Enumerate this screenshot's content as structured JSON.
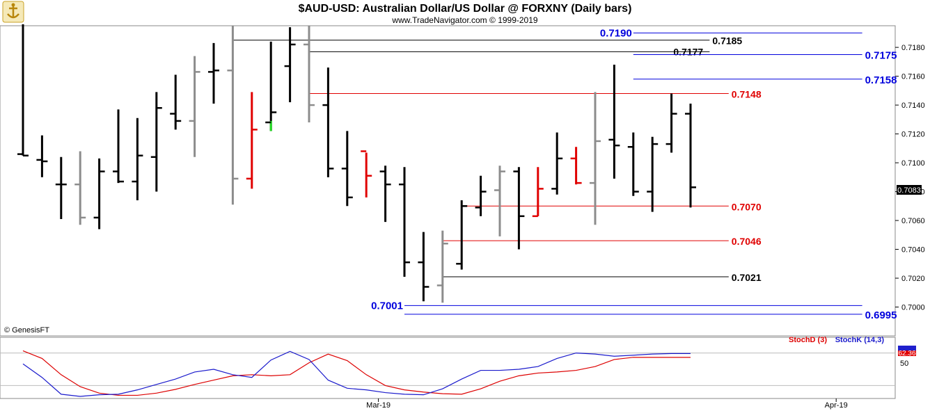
{
  "header": {
    "title": "$AUD-USD:  Australian Dollar/US Dollar @ FORXNY  (Daily bars)",
    "subtitle": "www.TradeNavigator.com © 1999-2019"
  },
  "copyright": "© GenesisFT",
  "colors": {
    "black": "#000000",
    "gray": "#8c8c8c",
    "red": "#e00000",
    "green": "#22dd22",
    "blue": "#0000dd",
    "stochK": "#1a1acc",
    "stochD": "#dd0000"
  },
  "chart_data": [
    {
      "type": "ohlc",
      "ylim": [
        0.698,
        0.7195
      ],
      "y_ticks": [
        "0.7180",
        "0.7160",
        "0.7140",
        "0.7120",
        "0.7100",
        "0.7080",
        "0.7060",
        "0.7040",
        "0.7020",
        "0.7000"
      ],
      "x_labels": [
        {
          "label": "Mar-19",
          "index": 19
        },
        {
          "label": "Apr-19",
          "index": 43
        }
      ],
      "last_price": "0.7083",
      "bars": [
        {
          "h": 0.7196,
          "l": 0.7105,
          "o": 0.7106,
          "c": 0.7105,
          "color": "black"
        },
        {
          "h": 0.7119,
          "l": 0.709,
          "o": 0.7102,
          "c": 0.7101,
          "color": "black"
        },
        {
          "h": 0.7104,
          "l": 0.7061,
          "o": 0.7085,
          "c": 0.7085,
          "color": "black"
        },
        {
          "h": 0.7108,
          "l": 0.7057,
          "o": 0.7085,
          "c": 0.7062,
          "color": "gray"
        },
        {
          "h": 0.7103,
          "l": 0.7054,
          "o": 0.7062,
          "c": 0.7094,
          "color": "black"
        },
        {
          "h": 0.7137,
          "l": 0.7086,
          "o": 0.7094,
          "c": 0.7087,
          "color": "black"
        },
        {
          "h": 0.7131,
          "l": 0.7074,
          "o": 0.7087,
          "c": 0.7105,
          "color": "black"
        },
        {
          "h": 0.7149,
          "l": 0.708,
          "o": 0.7104,
          "c": 0.7138,
          "color": "black"
        },
        {
          "h": 0.7161,
          "l": 0.7123,
          "o": 0.7134,
          "c": 0.7129,
          "color": "black"
        },
        {
          "h": 0.7174,
          "l": 0.7104,
          "o": 0.7129,
          "c": 0.7163,
          "color": "gray"
        },
        {
          "h": 0.7183,
          "l": 0.7141,
          "o": 0.7163,
          "c": 0.7164,
          "color": "black"
        },
        {
          "h": 0.7195,
          "l": 0.7071,
          "o": 0.7164,
          "c": 0.7089,
          "color": "gray"
        },
        {
          "h": 0.7149,
          "l": 0.7082,
          "o": 0.7089,
          "c": 0.7123,
          "color": "red"
        },
        {
          "h": 0.7184,
          "l": 0.7122,
          "o": 0.7128,
          "c": 0.7135,
          "color": "black",
          "low_seg_color": "green",
          "low_seg_top": 0.7129
        },
        {
          "h": 0.7194,
          "l": 0.7142,
          "o": 0.7167,
          "c": 0.7182,
          "color": "black"
        },
        {
          "h": 0.7195,
          "l": 0.7128,
          "o": 0.7182,
          "c": 0.714,
          "color": "gray"
        },
        {
          "h": 0.7166,
          "l": 0.709,
          "o": 0.714,
          "c": 0.7096,
          "color": "black"
        },
        {
          "h": 0.7122,
          "l": 0.707,
          "o": 0.7096,
          "c": 0.7076,
          "color": "black"
        },
        {
          "h": 0.7107,
          "l": 0.7076,
          "o": 0.7108,
          "c": 0.7091,
          "color": "red"
        },
        {
          "h": 0.7098,
          "l": 0.7059,
          "o": 0.7094,
          "c": 0.7085,
          "color": "black"
        },
        {
          "h": 0.7097,
          "l": 0.7021,
          "o": 0.7085,
          "c": 0.7031,
          "color": "black"
        },
        {
          "h": 0.7052,
          "l": 0.7004,
          "o": 0.7031,
          "c": 0.7014,
          "color": "black"
        },
        {
          "h": 0.7053,
          "l": 0.7003,
          "o": 0.7015,
          "c": 0.7044,
          "color": "gray"
        },
        {
          "h": 0.7074,
          "l": 0.7026,
          "o": 0.703,
          "c": 0.707,
          "color": "black"
        },
        {
          "h": 0.7091,
          "l": 0.7063,
          "o": 0.7069,
          "c": 0.708,
          "color": "black"
        },
        {
          "h": 0.7098,
          "l": 0.7049,
          "o": 0.7081,
          "c": 0.7094,
          "color": "gray"
        },
        {
          "h": 0.7097,
          "l": 0.704,
          "o": 0.7094,
          "c": 0.7063,
          "color": "black"
        },
        {
          "h": 0.7097,
          "l": 0.7063,
          "o": 0.7063,
          "c": 0.7082,
          "color": "red"
        },
        {
          "h": 0.7121,
          "l": 0.7078,
          "o": 0.7082,
          "c": 0.7103,
          "color": "black"
        },
        {
          "h": 0.7111,
          "l": 0.7085,
          "o": 0.7103,
          "c": 0.7086,
          "color": "red"
        },
        {
          "h": 0.7149,
          "l": 0.7057,
          "o": 0.7086,
          "c": 0.7115,
          "color": "gray"
        },
        {
          "h": 0.7168,
          "l": 0.7089,
          "o": 0.7116,
          "c": 0.7112,
          "color": "black"
        },
        {
          "h": 0.7121,
          "l": 0.7077,
          "o": 0.7111,
          "c": 0.708,
          "color": "black"
        },
        {
          "h": 0.7118,
          "l": 0.7066,
          "o": 0.708,
          "c": 0.7113,
          "color": "black"
        },
        {
          "h": 0.7148,
          "l": 0.7107,
          "o": 0.7113,
          "c": 0.7134,
          "color": "black"
        },
        {
          "h": 0.7141,
          "l": 0.7069,
          "o": 0.7134,
          "c": 0.7083,
          "color": "black"
        }
      ],
      "levels": [
        {
          "label": "0.7190",
          "value": 0.719,
          "color": "blue",
          "x_start": 32,
          "x_end": 44,
          "label_pos": "left"
        },
        {
          "label": "0.7185",
          "value": 0.7185,
          "color": "black",
          "x_start": 11,
          "x_end": 36,
          "label_pos": "right"
        },
        {
          "label": "0.7177",
          "value": 0.7177,
          "color": "black",
          "x_start": 15,
          "x_end": 36,
          "label_pos": "right-inner"
        },
        {
          "label": "0.7175",
          "value": 0.7175,
          "color": "blue",
          "x_start": 32,
          "x_end": 44,
          "label_pos": "right"
        },
        {
          "label": "0.7158",
          "value": 0.7158,
          "color": "blue",
          "x_start": 32,
          "x_end": 44,
          "label_pos": "right"
        },
        {
          "label": "0.7148",
          "value": 0.7148,
          "color": "red",
          "x_start": 15,
          "x_end": 37,
          "label_pos": "right"
        },
        {
          "label": "0.7070",
          "value": 0.707,
          "color": "red",
          "x_start": 23,
          "x_end": 37,
          "label_pos": "right"
        },
        {
          "label": "0.7046",
          "value": 0.7046,
          "color": "red",
          "x_start": 22,
          "x_end": 37,
          "label_pos": "right"
        },
        {
          "label": "0.7021",
          "value": 0.7021,
          "color": "black",
          "x_start": 22,
          "x_end": 37,
          "label_pos": "right"
        },
        {
          "label": "0.7001",
          "value": 0.7001,
          "color": "blue",
          "x_start": 20,
          "x_end": 44,
          "label_pos": "left"
        },
        {
          "label": "0.6995",
          "value": 0.6995,
          "color": "blue",
          "x_start": 20,
          "x_end": 44,
          "label_pos": "right"
        }
      ]
    },
    {
      "type": "line",
      "ylim": [
        0,
        100
      ],
      "y_ticks": [
        "50"
      ],
      "reference_lines": [
        80,
        20
      ],
      "last_value": "62.36",
      "series": [
        {
          "name": "StochD (3)",
          "color": "stochD",
          "values": [
            84,
            70,
            40,
            18,
            6,
            2,
            2,
            6,
            13,
            22,
            30,
            38,
            40,
            38,
            40,
            62,
            78,
            66,
            40,
            20,
            12,
            8,
            5,
            4,
            14,
            28,
            38,
            43,
            45,
            48,
            55,
            68,
            72,
            72,
            72,
            72
          ]
        },
        {
          "name": "StochK (14,3)",
          "color": "stochK",
          "values": [
            60,
            35,
            4,
            0,
            3,
            4,
            12,
            22,
            32,
            45,
            50,
            40,
            35,
            67,
            83,
            68,
            30,
            15,
            12,
            7,
            4,
            3,
            14,
            32,
            48,
            48,
            50,
            55,
            70,
            80,
            78,
            74,
            76,
            78,
            79,
            79
          ]
        }
      ]
    }
  ]
}
